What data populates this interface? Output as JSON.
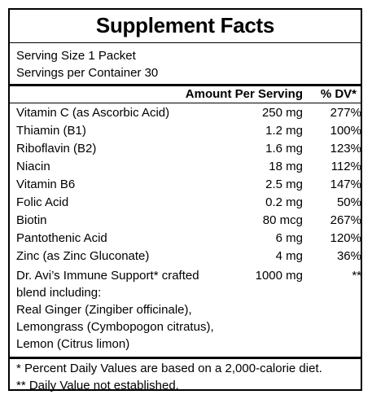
{
  "label": {
    "title": "Supplement Facts",
    "serving_size": "Serving Size 1 Packet",
    "servings_per_container": "Servings per Container 30",
    "header_amount": "Amount Per Serving",
    "header_dv": "% DV*",
    "nutrients": [
      {
        "name": "Vitamin C (as Ascorbic Acid)",
        "amount": "250 mg",
        "dv": "277%"
      },
      {
        "name": "Thiamin (B1)",
        "amount": "1.2 mg",
        "dv": "100%"
      },
      {
        "name": "Riboflavin (B2)",
        "amount": "1.6 mg",
        "dv": "123%"
      },
      {
        "name": "Niacin",
        "amount": "18 mg",
        "dv": "112%"
      },
      {
        "name": "Vitamin B6",
        "amount": "2.5 mg",
        "dv": "147%"
      },
      {
        "name": "Folic Acid",
        "amount": "0.2 mg",
        "dv": "50%"
      },
      {
        "name": "Biotin",
        "amount": "80 mcg",
        "dv": "267%"
      },
      {
        "name": "Pantothenic Acid",
        "amount": "6 mg",
        "dv": "120%"
      },
      {
        "name": "Zinc (as Zinc Gluconate)",
        "amount": "4 mg",
        "dv": "36%"
      }
    ],
    "blend": {
      "lines": [
        "Dr. Avi’s Immune Support* crafted",
        "blend including:",
        "Real Ginger (Zingiber officinale),",
        "Lemongrass (Cymbopogon citratus),",
        "Lemon (Citrus limon)"
      ],
      "amount": "1000 mg",
      "dv": "**"
    },
    "footnotes": [
      "* Percent Daily Values are based on a 2,000-calorie diet.",
      "** Daily Value not established."
    ]
  }
}
